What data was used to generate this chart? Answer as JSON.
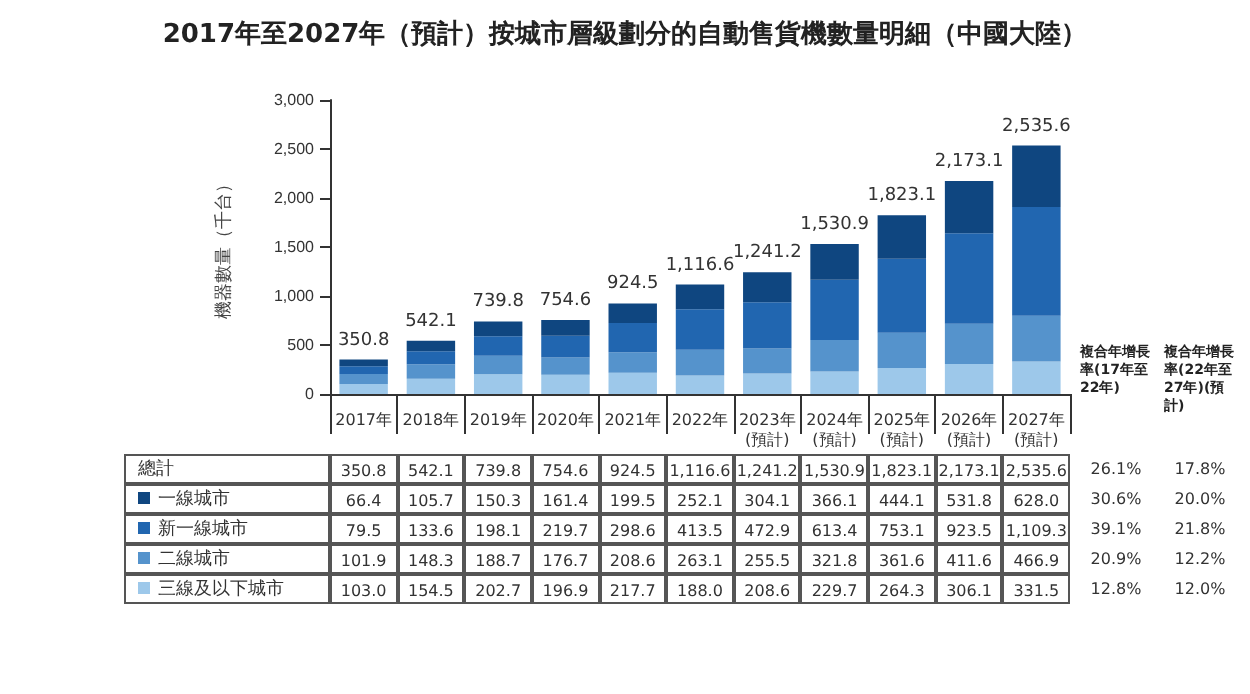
{
  "chart_data": {
    "type": "bar",
    "title": "2017年至2027年（預計）按城市層級劃分的自動售貨機數量明細（中國大陸）",
    "ylabel": "機器數量（千台）",
    "categories": [
      "2017年",
      "2018年",
      "2019年",
      "2020年",
      "2021年",
      "2022年",
      "2023年\n(預計)",
      "2024年\n(預計)",
      "2025年\n(預計)",
      "2026年\n(預計)",
      "2027年\n(預計)"
    ],
    "series": [
      {
        "name": "三線及以下城市",
        "color": "#9dc8ea",
        "values": [
          103.0,
          154.5,
          202.7,
          196.9,
          217.7,
          188.0,
          208.6,
          229.7,
          264.3,
          306.1,
          331.5
        ],
        "value_labels": [
          "103.0",
          "154.5",
          "202.7",
          "196.9",
          "217.7",
          "188.0",
          "208.6",
          "229.7",
          "264.3",
          "306.1",
          "331.5"
        ]
      },
      {
        "name": "二線城市",
        "color": "#5593cc",
        "values": [
          101.9,
          148.3,
          188.7,
          176.7,
          208.6,
          263.1,
          255.5,
          321.8,
          361.6,
          411.6,
          466.9
        ],
        "value_labels": [
          "101.9",
          "148.3",
          "188.7",
          "176.7",
          "208.6",
          "263.1",
          "255.5",
          "321.8",
          "361.6",
          "411.6",
          "466.9"
        ]
      },
      {
        "name": "新一線城市",
        "color": "#2166b0",
        "values": [
          79.5,
          133.6,
          198.1,
          219.7,
          298.6,
          413.5,
          472.9,
          613.4,
          753.1,
          923.5,
          1109.3
        ],
        "value_labels": [
          "79.5",
          "133.6",
          "198.1",
          "219.7",
          "298.6",
          "413.5",
          "472.9",
          "613.4",
          "753.1",
          "923.5",
          "1,109.3"
        ]
      },
      {
        "name": "一線城市",
        "color": "#0f4680",
        "values": [
          66.4,
          105.7,
          150.3,
          161.4,
          199.5,
          252.1,
          304.1,
          366.1,
          444.1,
          531.8,
          628.0
        ],
        "value_labels": [
          "66.4",
          "105.7",
          "150.3",
          "161.4",
          "199.5",
          "252.1",
          "304.1",
          "366.1",
          "444.1",
          "531.8",
          "628.0"
        ]
      }
    ],
    "stacked": true,
    "totals": [
      "350.8",
      "542.1",
      "739.8",
      "754.6",
      "924.5",
      "1,116.6",
      "1,241.2",
      "1,530.9",
      "1,823.1",
      "2,173.1",
      "2,535.6"
    ],
    "ylim": [
      0,
      3000
    ],
    "yticks": [
      0,
      500,
      {
        "value": 1000,
        "label": "1,000"
      },
      {
        "value": 1500,
        "label": "1,500"
      },
      {
        "value": 2000,
        "label": "2,000"
      },
      {
        "value": 2500,
        "label": "2,500"
      },
      {
        "value": 3000,
        "label": "3,000"
      }
    ],
    "grid": false,
    "legend": "bottom",
    "annotations": [
      "總計",
      "複合年增長率(17年至22年)",
      "複合年增長率(22年至27年)(預計)",
      "26.1%",
      "17.8%",
      "30.6%",
      "20.0%",
      "39.1%",
      "21.8%",
      "20.9%",
      "12.2%",
      "12.8%",
      "12.0%"
    ]
  }
}
